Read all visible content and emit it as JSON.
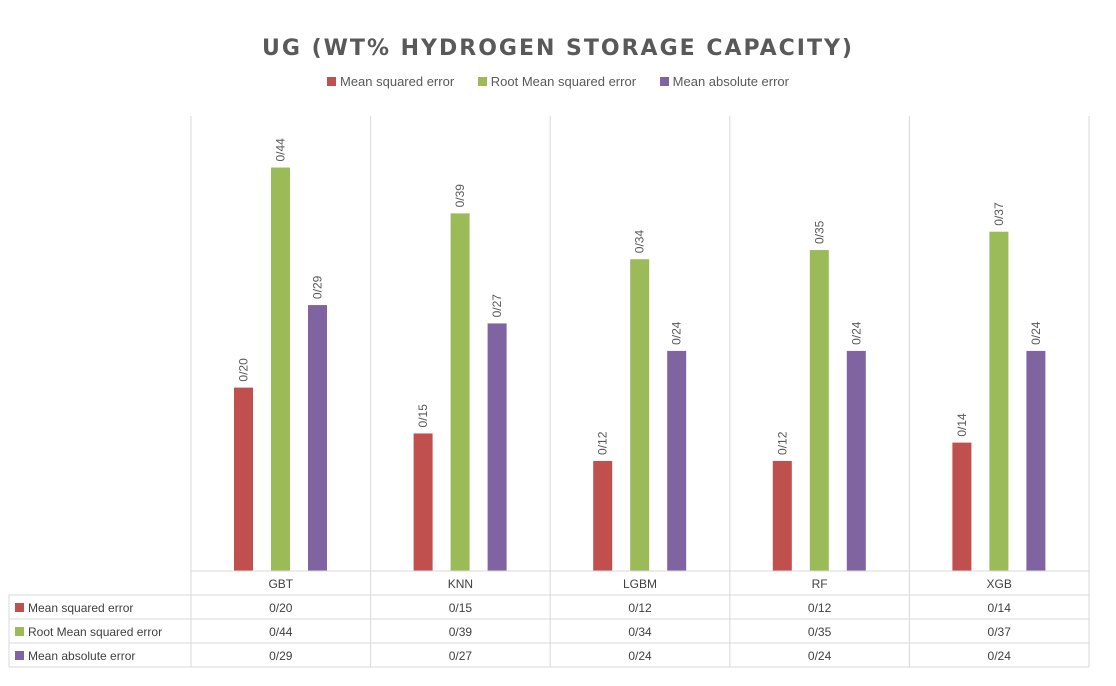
{
  "chart_data": {
    "type": "bar",
    "title": "UG (WT% HYDROGEN STORAGE CAPACITY)",
    "categories": [
      "GBT",
      "KNN",
      "LGBM",
      "RF",
      "XGB"
    ],
    "series": [
      {
        "name": "Mean squared error",
        "color": "#c0504d",
        "values": [
          0.2,
          0.15,
          0.12,
          0.12,
          0.14
        ],
        "labels": [
          "0/20",
          "0/15",
          "0/12",
          "0/12",
          "0/14"
        ]
      },
      {
        "name": "Root Mean squared error",
        "color": "#9bbb59",
        "values": [
          0.44,
          0.39,
          0.34,
          0.35,
          0.37
        ],
        "labels": [
          "0/44",
          "0/39",
          "0/34",
          "0/35",
          "0/37"
        ]
      },
      {
        "name": "Mean absolute error",
        "color": "#8064a2",
        "values": [
          0.29,
          0.27,
          0.24,
          0.24,
          0.24
        ],
        "labels": [
          "0/29",
          "0/27",
          "0/24",
          "0/24",
          "0/24"
        ]
      }
    ],
    "legend_position": "top",
    "data_table": true,
    "grid": "vertical category separators"
  }
}
